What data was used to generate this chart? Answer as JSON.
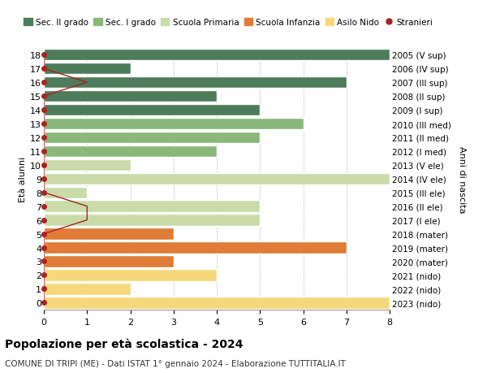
{
  "ages": [
    18,
    17,
    16,
    15,
    14,
    13,
    12,
    11,
    10,
    9,
    8,
    7,
    6,
    5,
    4,
    3,
    2,
    1,
    0
  ],
  "years": [
    "2005 (V sup)",
    "2006 (IV sup)",
    "2007 (III sup)",
    "2008 (II sup)",
    "2009 (I sup)",
    "2010 (III med)",
    "2011 (II med)",
    "2012 (I med)",
    "2013 (V ele)",
    "2014 (IV ele)",
    "2015 (III ele)",
    "2016 (II ele)",
    "2017 (I ele)",
    "2018 (mater)",
    "2019 (mater)",
    "2020 (mater)",
    "2021 (nido)",
    "2022 (nido)",
    "2023 (nido)"
  ],
  "values": [
    8,
    2,
    7,
    4,
    5,
    6,
    5,
    4,
    2,
    8,
    1,
    5,
    5,
    3,
    7,
    3,
    4,
    2,
    8
  ],
  "stranieri_values": [
    0,
    0,
    1,
    0,
    0,
    0,
    0,
    0,
    0,
    0,
    0,
    1,
    1,
    0,
    0,
    0,
    0,
    0,
    0
  ],
  "colors_by_age": {
    "18": "#4d7c5a",
    "17": "#4d7c5a",
    "16": "#4d7c5a",
    "15": "#4d7c5a",
    "14": "#4d7c5a",
    "13": "#8ab87a",
    "12": "#8ab87a",
    "11": "#8ab87a",
    "10": "#c8dba8",
    "9": "#c8dba8",
    "8": "#c8dba8",
    "7": "#c8dba8",
    "6": "#c8dba8",
    "5": "#e07c38",
    "4": "#e07c38",
    "3": "#e07c38",
    "2": "#f5d87a",
    "1": "#f5d87a",
    "0": "#f5d87a"
  },
  "stranieri_color": "#aa2222",
  "xlabel_label": "Età alunni",
  "ylabel_label": "Anni di nascita",
  "title": "Popolazione per età scolastica - 2024",
  "subtitle": "COMUNE DI TRIPI (ME) - Dati ISTAT 1° gennaio 2024 - Elaborazione TUTTITALIA.IT",
  "xlim": [
    0,
    8
  ],
  "legend_labels": [
    "Sec. II grado",
    "Sec. I grado",
    "Scuola Primaria",
    "Scuola Infanzia",
    "Asilo Nido",
    "Stranieri"
  ],
  "legend_colors": [
    "#4d7c5a",
    "#8ab87a",
    "#c8dba8",
    "#e07c38",
    "#f5d87a",
    "#aa2222"
  ],
  "bg_color": "#ffffff",
  "bar_edgecolor": "#ffffff",
  "grid_color": "#bbbbbb"
}
